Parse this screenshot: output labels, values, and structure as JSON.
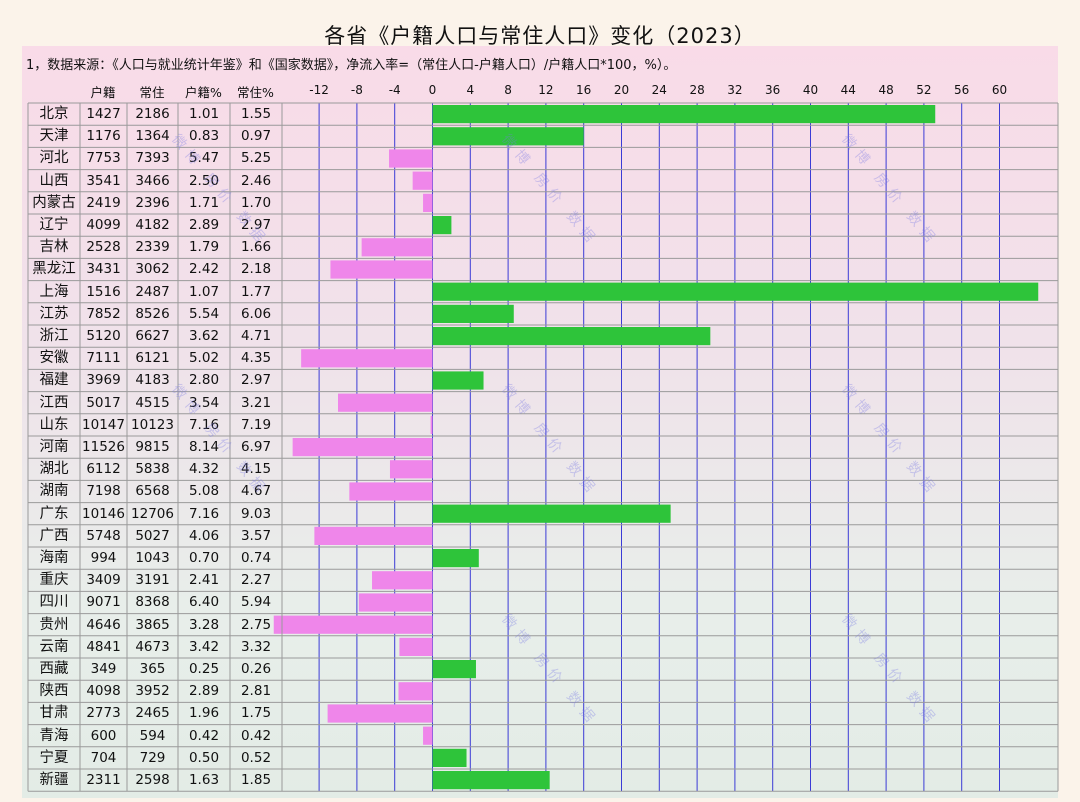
{
  "title": "各省《户籍人口与常住人口》变化（2023）",
  "note": "1，数据来源：《人口与就业统计年鉴》和《国家数据》，净流入率=（常住人口-户籍人口）/户籍人口*100，%）。",
  "headers": {
    "huji": "户籍",
    "changzhu": "常住",
    "huji_pct": "户籍%",
    "changzhu_pct": "常住%"
  },
  "watermark": "微博 房价 数据",
  "colors": {
    "positive": "#2ec43a",
    "negative": "#ef86ea",
    "grid_v": "#3b3bd6",
    "grid_h": "#9a9a9a"
  },
  "chart_data": {
    "type": "bar",
    "orientation": "horizontal",
    "x_ticks": [
      -12,
      -8,
      -4,
      0,
      4,
      8,
      12,
      16,
      20,
      24,
      28,
      32,
      36,
      40,
      44,
      48,
      52,
      56,
      60
    ],
    "xlim": [
      -16,
      66
    ],
    "rows": [
      {
        "name": "北京",
        "huji": "1427",
        "changzhu": "2186",
        "huji_pct": "1.01",
        "changzhu_pct": "1.55",
        "net": 53.2
      },
      {
        "name": "天津",
        "huji": "1176",
        "changzhu": "1364",
        "huji_pct": "0.83",
        "changzhu_pct": "0.97",
        "net": 16.0
      },
      {
        "name": "河北",
        "huji": "7753",
        "changzhu": "7393",
        "huji_pct": "5.47",
        "changzhu_pct": "5.25",
        "net": -4.6
      },
      {
        "name": "山西",
        "huji": "3541",
        "changzhu": "3466",
        "huji_pct": "2.50",
        "changzhu_pct": "2.46",
        "net": -2.1
      },
      {
        "name": "内蒙古",
        "huji": "2419",
        "changzhu": "2396",
        "huji_pct": "1.71",
        "changzhu_pct": "1.70",
        "net": -1.0
      },
      {
        "name": "辽宁",
        "huji": "4099",
        "changzhu": "4182",
        "huji_pct": "2.89",
        "changzhu_pct": "2.97",
        "net": 2.0
      },
      {
        "name": "吉林",
        "huji": "2528",
        "changzhu": "2339",
        "huji_pct": "1.79",
        "changzhu_pct": "1.66",
        "net": -7.5
      },
      {
        "name": "黑龙江",
        "huji": "3431",
        "changzhu": "3062",
        "huji_pct": "2.42",
        "changzhu_pct": "2.18",
        "net": -10.8
      },
      {
        "name": "上海",
        "huji": "1516",
        "changzhu": "2487",
        "huji_pct": "1.07",
        "changzhu_pct": "1.77",
        "net": 64.1
      },
      {
        "name": "江苏",
        "huji": "7852",
        "changzhu": "8526",
        "huji_pct": "5.54",
        "changzhu_pct": "6.06",
        "net": 8.6
      },
      {
        "name": "浙江",
        "huji": "5120",
        "changzhu": "6627",
        "huji_pct": "3.62",
        "changzhu_pct": "4.71",
        "net": 29.4
      },
      {
        "name": "安徽",
        "huji": "7111",
        "changzhu": "6121",
        "huji_pct": "5.02",
        "changzhu_pct": "4.35",
        "net": -13.9
      },
      {
        "name": "福建",
        "huji": "3969",
        "changzhu": "4183",
        "huji_pct": "2.80",
        "changzhu_pct": "2.97",
        "net": 5.4
      },
      {
        "name": "江西",
        "huji": "5017",
        "changzhu": "4515",
        "huji_pct": "3.54",
        "changzhu_pct": "3.21",
        "net": -10.0
      },
      {
        "name": "山东",
        "huji": "10147",
        "changzhu": "10123",
        "huji_pct": "7.16",
        "changzhu_pct": "7.19",
        "net": -0.2
      },
      {
        "name": "河南",
        "huji": "11526",
        "changzhu": "9815",
        "huji_pct": "8.14",
        "changzhu_pct": "6.97",
        "net": -14.8
      },
      {
        "name": "湖北",
        "huji": "6112",
        "changzhu": "5838",
        "huji_pct": "4.32",
        "changzhu_pct": "4.15",
        "net": -4.5
      },
      {
        "name": "湖南",
        "huji": "7198",
        "changzhu": "6568",
        "huji_pct": "5.08",
        "changzhu_pct": "4.67",
        "net": -8.8
      },
      {
        "name": "广东",
        "huji": "10146",
        "changzhu": "12706",
        "huji_pct": "7.16",
        "changzhu_pct": "9.03",
        "net": 25.2
      },
      {
        "name": "广西",
        "huji": "5748",
        "changzhu": "5027",
        "huji_pct": "4.06",
        "changzhu_pct": "3.57",
        "net": -12.5
      },
      {
        "name": "海南",
        "huji": "994",
        "changzhu": "1043",
        "huji_pct": "0.70",
        "changzhu_pct": "0.74",
        "net": 4.9
      },
      {
        "name": "重庆",
        "huji": "3409",
        "changzhu": "3191",
        "huji_pct": "2.41",
        "changzhu_pct": "2.27",
        "net": -6.4
      },
      {
        "name": "四川",
        "huji": "9071",
        "changzhu": "8368",
        "huji_pct": "6.40",
        "changzhu_pct": "5.94",
        "net": -7.8
      },
      {
        "name": "贵州",
        "huji": "4646",
        "changzhu": "3865",
        "huji_pct": "3.28",
        "changzhu_pct": "2.75",
        "net": -16.8
      },
      {
        "name": "云南",
        "huji": "4841",
        "changzhu": "4673",
        "huji_pct": "3.42",
        "changzhu_pct": "3.32",
        "net": -3.5
      },
      {
        "name": "西藏",
        "huji": "349",
        "changzhu": "365",
        "huji_pct": "0.25",
        "changzhu_pct": "0.26",
        "net": 4.6
      },
      {
        "name": "陕西",
        "huji": "4098",
        "changzhu": "3952",
        "huji_pct": "2.89",
        "changzhu_pct": "2.81",
        "net": -3.6
      },
      {
        "name": "甘肃",
        "huji": "2773",
        "changzhu": "2465",
        "huji_pct": "1.96",
        "changzhu_pct": "1.75",
        "net": -11.1
      },
      {
        "name": "青海",
        "huji": "600",
        "changzhu": "594",
        "huji_pct": "0.42",
        "changzhu_pct": "0.42",
        "net": -1.0
      },
      {
        "name": "宁夏",
        "huji": "704",
        "changzhu": "729",
        "huji_pct": "0.50",
        "changzhu_pct": "0.52",
        "net": 3.6
      },
      {
        "name": "新疆",
        "huji": "2311",
        "changzhu": "2598",
        "huji_pct": "1.63",
        "changzhu_pct": "1.85",
        "net": 12.4
      }
    ]
  }
}
